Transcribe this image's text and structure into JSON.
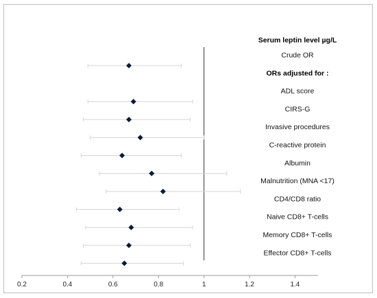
{
  "chart_data": {
    "type": "forest",
    "header": "Serum leptin level µg/L",
    "x_ticks": [
      0.2,
      0.4,
      0.6,
      0.8,
      1,
      1.2,
      1.4
    ],
    "xlim": [
      0.2,
      1.5
    ],
    "reference_line": 1,
    "colors": {
      "point": "#0b1a3a",
      "ci": "#d4d4d4",
      "axis": "#9a9a9a",
      "reference": "#333333"
    },
    "rows": [
      {
        "label": "Crude OR",
        "or": 0.67,
        "ci": [
          0.49,
          0.9
        ]
      },
      {
        "label": "ORs adjusted for :",
        "heading": true
      },
      {
        "label": "ADL score",
        "or": 0.69,
        "ci": [
          0.49,
          0.95
        ]
      },
      {
        "label": "CIRS-G",
        "or": 0.67,
        "ci": [
          0.47,
          0.94
        ]
      },
      {
        "label": "Invasive procedures",
        "or": 0.72,
        "ci": [
          0.5,
          1.0
        ]
      },
      {
        "label": "C-reactive protein",
        "or": 0.64,
        "ci": [
          0.46,
          0.9
        ]
      },
      {
        "label": "Albumin",
        "or": 0.77,
        "ci": [
          0.54,
          1.1
        ]
      },
      {
        "label": "Malnutrition (MNA <17)",
        "or": 0.82,
        "ci": [
          0.57,
          1.16
        ]
      },
      {
        "label": "CD4/CD8 ratio",
        "or": 0.63,
        "ci": [
          0.44,
          0.89
        ]
      },
      {
        "label": "Naive CD8+ T-cells",
        "or": 0.68,
        "ci": [
          0.48,
          0.95
        ]
      },
      {
        "label": "Memory CD8+ T-cells",
        "or": 0.67,
        "ci": [
          0.47,
          0.94
        ]
      },
      {
        "label": "Effector CD8+ T-cells",
        "or": 0.65,
        "ci": [
          0.46,
          0.91
        ]
      }
    ]
  }
}
